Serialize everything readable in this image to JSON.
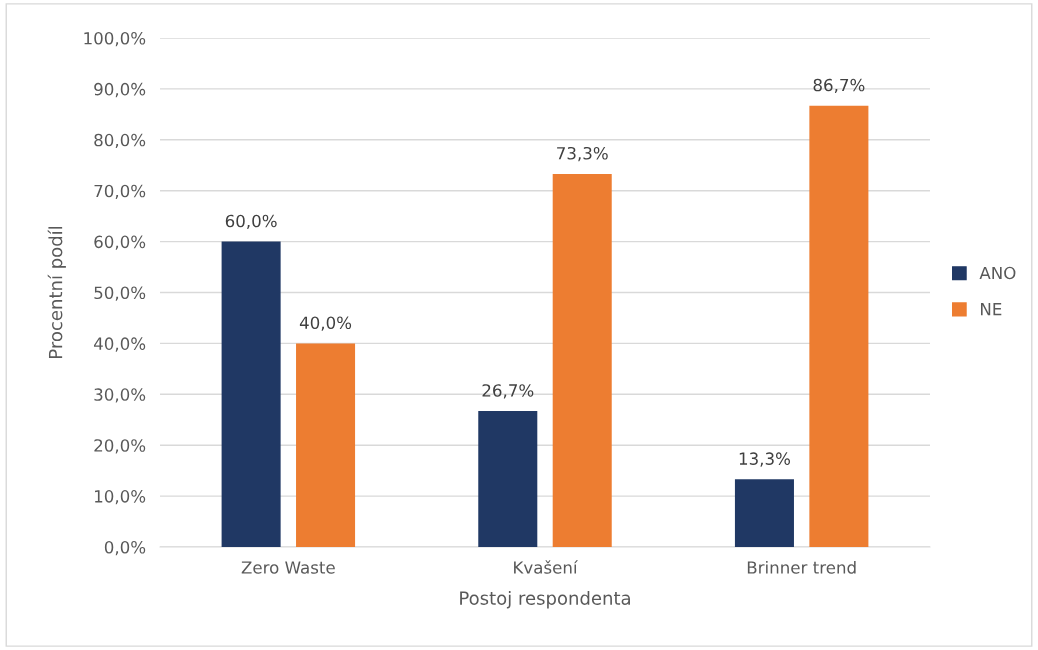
{
  "chart_data": {
    "type": "bar",
    "xlabel": "Postoj respondenta",
    "ylabel": "Procentní podíl",
    "categories": [
      "Zero Waste",
      "Kvašení",
      "Brinner trend"
    ],
    "series": [
      {
        "name": "ANO",
        "color": "#203864",
        "values": [
          60.0,
          26.7,
          13.3
        ],
        "value_labels": [
          "60,0%",
          "26,7%",
          "13,3%"
        ]
      },
      {
        "name": "NE",
        "color": "#ed7d31",
        "values": [
          40.0,
          73.3,
          86.7
        ],
        "value_labels": [
          "40,0%",
          "73,3%",
          "86,7%"
        ]
      }
    ],
    "ylim": [
      0,
      100
    ],
    "yticks": [
      {
        "value": 0,
        "label": "0,0%"
      },
      {
        "value": 10,
        "label": "10,0%"
      },
      {
        "value": 20,
        "label": "20,0%"
      },
      {
        "value": 30,
        "label": "30,0%"
      },
      {
        "value": 40,
        "label": "40,0%"
      },
      {
        "value": 50,
        "label": "50,0%"
      },
      {
        "value": 60,
        "label": "60,0%"
      },
      {
        "value": 70,
        "label": "70,0%"
      },
      {
        "value": 80,
        "label": "80,0%"
      },
      {
        "value": 90,
        "label": "90,0%"
      },
      {
        "value": 100,
        "label": "100,0%"
      }
    ],
    "grid": "y",
    "legend": "right"
  }
}
